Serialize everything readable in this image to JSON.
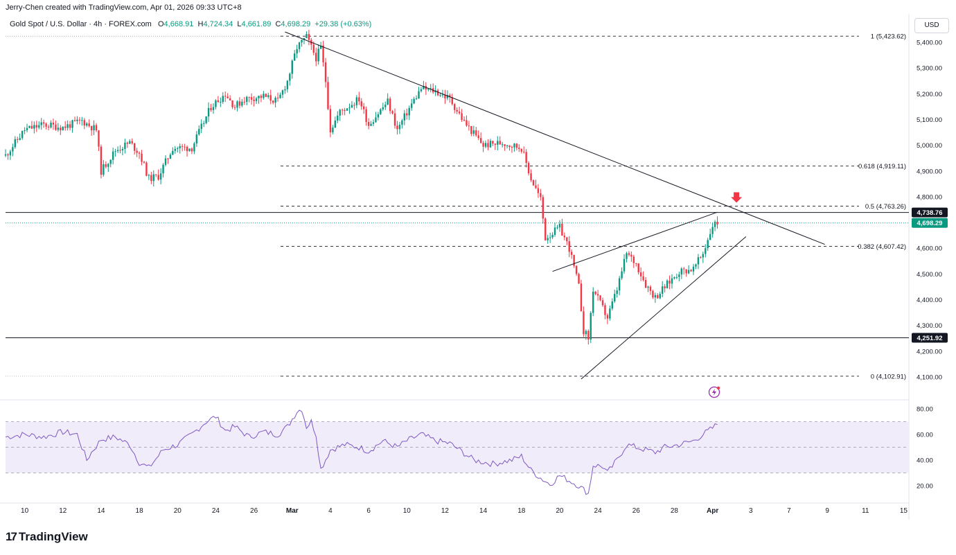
{
  "header": {
    "attribution": "Jerry-Chen created with TradingView.com, Apr 01, 2026 09:33 UTC+8",
    "symbol": "Gold Spot / U.S. Dollar · 4h · FOREX.com",
    "ohlc": {
      "o_label": "O",
      "o": "4,668.91",
      "h_label": "H",
      "h": "4,724.34",
      "l_label": "L",
      "l": "4,661.89",
      "c_label": "C",
      "c": "4,698.29",
      "change": "+29.38 (+0.63%)"
    },
    "currency": "USD"
  },
  "brand": {
    "logo": "17",
    "name": "TradingView"
  },
  "colors": {
    "up": "#089981",
    "down": "#f23645",
    "rsi": "#7e57c2",
    "rsi_band": "#f1ecfa",
    "bg": "#ffffff"
  },
  "chart_data": [
    {
      "type": "candlestick",
      "title": "Gold Spot / U.S. Dollar · 4h · FOREX.com",
      "ylim": [
        4060,
        5470
      ],
      "y_ticks": [
        "5,400.00",
        "5,300.00",
        "5,200.00",
        "5,100.00",
        "5,000.00",
        "4,900.00",
        "4,800.00",
        "4,600.00",
        "4,500.00",
        "4,400.00",
        "4,300.00",
        "4,200.00",
        "4,100.00"
      ],
      "y_tick_values": [
        5400,
        5300,
        5200,
        5100,
        5000,
        4900,
        4800,
        4600,
        4500,
        4400,
        4300,
        4200,
        4100
      ],
      "x_ticks": [
        "10",
        "12",
        "14",
        "18",
        "20",
        "24",
        "26",
        "Mar",
        "4",
        "6",
        "10",
        "12",
        "14",
        "18",
        "20",
        "24",
        "26",
        "28",
        "Apr",
        "3",
        "7",
        "9",
        "11",
        "15"
      ],
      "x_tick_index": [
        8,
        24,
        40,
        56,
        72,
        88,
        104,
        120,
        136,
        152,
        168,
        184,
        200,
        216,
        232,
        248,
        264,
        280,
        296,
        312,
        328,
        344,
        360,
        376
      ],
      "price_path": [
        [
          0,
          4960
        ],
        [
          8,
          5060
        ],
        [
          16,
          5080
        ],
        [
          24,
          5070
        ],
        [
          32,
          5095
        ],
        [
          38,
          5060
        ],
        [
          40,
          4900
        ],
        [
          46,
          4980
        ],
        [
          52,
          5010
        ],
        [
          56,
          4970
        ],
        [
          60,
          4870
        ],
        [
          64,
          4880
        ],
        [
          70,
          4990
        ],
        [
          78,
          4990
        ],
        [
          86,
          5150
        ],
        [
          92,
          5200
        ],
        [
          96,
          5150
        ],
        [
          100,
          5180
        ],
        [
          108,
          5190
        ],
        [
          114,
          5170
        ],
        [
          118,
          5250
        ],
        [
          122,
          5380
        ],
        [
          126,
          5420
        ],
        [
          130,
          5340
        ],
        [
          132,
          5380
        ],
        [
          134,
          5250
        ],
        [
          136,
          5060
        ],
        [
          140,
          5130
        ],
        [
          148,
          5180
        ],
        [
          152,
          5080
        ],
        [
          160,
          5170
        ],
        [
          164,
          5060
        ],
        [
          170,
          5160
        ],
        [
          174,
          5220
        ],
        [
          180,
          5210
        ],
        [
          186,
          5180
        ],
        [
          192,
          5090
        ],
        [
          200,
          5000
        ],
        [
          208,
          5010
        ],
        [
          216,
          4990
        ],
        [
          220,
          4870
        ],
        [
          224,
          4790
        ],
        [
          226,
          4640
        ],
        [
          232,
          4680
        ],
        [
          236,
          4600
        ],
        [
          240,
          4450
        ],
        [
          242,
          4280
        ],
        [
          244,
          4250
        ],
        [
          246,
          4440
        ],
        [
          252,
          4330
        ],
        [
          256,
          4440
        ],
        [
          260,
          4580
        ],
        [
          264,
          4540
        ],
        [
          268,
          4460
        ],
        [
          272,
          4410
        ],
        [
          276,
          4450
        ],
        [
          282,
          4510
        ],
        [
          288,
          4520
        ],
        [
          292,
          4580
        ],
        [
          296,
          4690
        ],
        [
          298,
          4698
        ]
      ],
      "last_close": 4698.29,
      "last_close_label": "4,698.29",
      "levels": [
        {
          "value": 4738.76,
          "label": "4,738.76"
        },
        {
          "value": 4251.92,
          "label": "4,251.92"
        }
      ],
      "fib_levels": [
        {
          "ratio": 1,
          "value": 5423.62,
          "label": "1 (5,423.62)"
        },
        {
          "ratio": 0.618,
          "value": 4919.11,
          "label": "0.618 (4,919.11)"
        },
        {
          "ratio": 0.5,
          "value": 4763.26,
          "label": "0.5 (4,763.26)"
        },
        {
          "ratio": 0.382,
          "value": 4607.42,
          "label": "0.382 (4,607.42)"
        },
        {
          "ratio": 0,
          "value": 4102.91,
          "label": "0 (4,102.91)"
        }
      ],
      "trendlines": [
        {
          "name": "descending-trendline",
          "from": [
            117,
            5440
          ],
          "to": [
            343,
            4615
          ]
        },
        {
          "name": "rising-channel-upper",
          "from": [
            229,
            4510
          ],
          "to": [
            298,
            4740
          ]
        },
        {
          "name": "rising-channel-lower",
          "from": [
            241,
            4092
          ],
          "to": [
            310,
            4645
          ]
        }
      ],
      "marker": {
        "type": "down-arrow",
        "index": 306,
        "value": 4785
      }
    },
    {
      "type": "line",
      "title": "RSI",
      "ylim": [
        10,
        85
      ],
      "y_ticks": [
        "80.00",
        "60.00",
        "40.00",
        "20.00"
      ],
      "y_tick_values": [
        80,
        60,
        40,
        20
      ],
      "band": [
        30,
        70
      ],
      "mid": 50,
      "series": [
        [
          0,
          58
        ],
        [
          8,
          60
        ],
        [
          16,
          58
        ],
        [
          24,
          62
        ],
        [
          30,
          60
        ],
        [
          34,
          40
        ],
        [
          36,
          46
        ],
        [
          40,
          56
        ],
        [
          46,
          58
        ],
        [
          52,
          52
        ],
        [
          56,
          38
        ],
        [
          60,
          34
        ],
        [
          66,
          48
        ],
        [
          72,
          52
        ],
        [
          78,
          60
        ],
        [
          84,
          70
        ],
        [
          88,
          74
        ],
        [
          92,
          63
        ],
        [
          96,
          66
        ],
        [
          102,
          58
        ],
        [
          108,
          62
        ],
        [
          114,
          60
        ],
        [
          118,
          66
        ],
        [
          122,
          78
        ],
        [
          124,
          80
        ],
        [
          126,
          66
        ],
        [
          128,
          70
        ],
        [
          130,
          60
        ],
        [
          132,
          33
        ],
        [
          136,
          48
        ],
        [
          142,
          52
        ],
        [
          148,
          50
        ],
        [
          152,
          47
        ],
        [
          158,
          55
        ],
        [
          164,
          50
        ],
        [
          168,
          55
        ],
        [
          174,
          60
        ],
        [
          180,
          55
        ],
        [
          186,
          53
        ],
        [
          190,
          48
        ],
        [
          196,
          40
        ],
        [
          204,
          37
        ],
        [
          212,
          40
        ],
        [
          216,
          43
        ],
        [
          220,
          32
        ],
        [
          224,
          26
        ],
        [
          228,
          21
        ],
        [
          232,
          28
        ],
        [
          236,
          24
        ],
        [
          240,
          20
        ],
        [
          244,
          14
        ],
        [
          246,
          36
        ],
        [
          250,
          35
        ],
        [
          252,
          30
        ],
        [
          256,
          40
        ],
        [
          260,
          52
        ],
        [
          264,
          50
        ],
        [
          268,
          48
        ],
        [
          272,
          46
        ],
        [
          276,
          50
        ],
        [
          282,
          52
        ],
        [
          288,
          55
        ],
        [
          292,
          60
        ],
        [
          296,
          65
        ],
        [
          298,
          68
        ]
      ]
    }
  ]
}
